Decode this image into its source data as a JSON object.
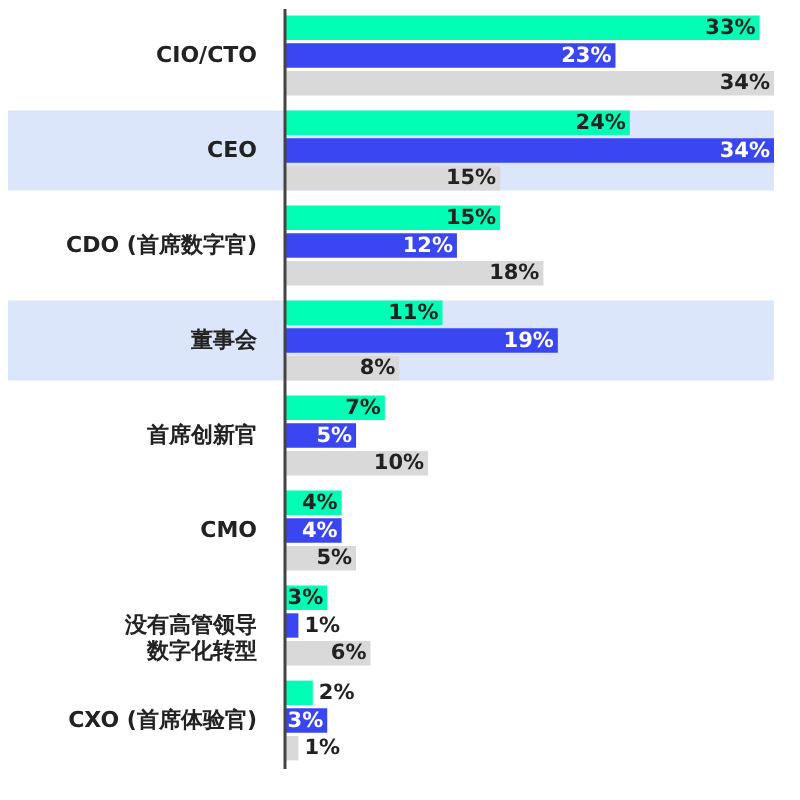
{
  "chart_data": {
    "type": "bar",
    "orientation": "horizontal",
    "categories": [
      "CIO/CTO",
      "CEO",
      "CDO (首席数字官)",
      "董事会",
      "首席创新官",
      "CMO",
      "没有高管领导数字化转型",
      "CXO (首席体验官)"
    ],
    "series": [
      {
        "color": "#00ffb4",
        "values": [
          33,
          24,
          15,
          11,
          7,
          4,
          3,
          2
        ],
        "value_labels": [
          "33%",
          "24%",
          "15%",
          "11%",
          "7%",
          "4%",
          "3%",
          "2%"
        ]
      },
      {
        "color": "#3a46f2",
        "values": [
          23,
          34,
          12,
          19,
          5,
          4,
          1,
          3
        ],
        "value_labels": [
          "23%",
          "34%",
          "12%",
          "19%",
          "5%",
          "4%",
          "1%",
          "3%"
        ]
      },
      {
        "color": "#d9d9d9",
        "values": [
          34,
          15,
          18,
          8,
          10,
          5,
          6,
          1
        ],
        "value_labels": [
          "34%",
          "15%",
          "18%",
          "8%",
          "10%",
          "5%",
          "6%",
          "1%"
        ]
      }
    ],
    "bands": [
      {
        "axis": "y",
        "from": "CEO",
        "to": "CEO",
        "color": "#dce6fb"
      },
      {
        "axis": "y",
        "from": "董事会",
        "to": "董事会",
        "color": "#dce6fb"
      }
    ]
  }
}
